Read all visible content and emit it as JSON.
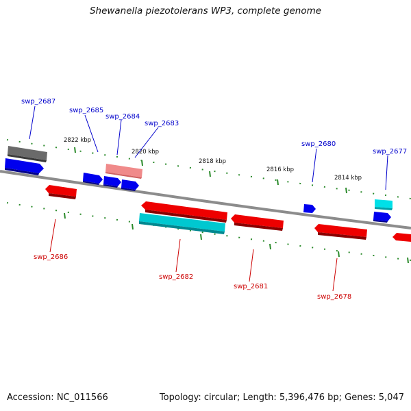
{
  "header": {
    "title": "Shewanella piezotolerans WP3, complete genome"
  },
  "footer": {
    "accession": "Accession: NC_011566",
    "summary": "Topology: circular; Length: 5,396,476 bp; Genes: 5,047"
  },
  "scale": {
    "tick_labels": [
      "2822 kbp",
      "2820 kbp",
      "2818 kbp",
      "2816 kbp",
      "2814 kbp"
    ]
  },
  "genes": {
    "forward": [
      {
        "label": "swp_2687",
        "color": "#0000ee"
      },
      {
        "label": "swp_2685",
        "color": "#0000ee"
      },
      {
        "label": "swp_2684",
        "color": "#0000ee"
      },
      {
        "label": "swp_2683",
        "color": "#0000ee"
      },
      {
        "label": "swp_2680",
        "color": "#0000ee"
      },
      {
        "label": "swp_2677",
        "color": "#0000ee"
      }
    ],
    "reverse": [
      {
        "label": "swp_2686",
        "color": "#ee0000"
      },
      {
        "label": "swp_2682",
        "color": "#ee0000"
      },
      {
        "label": "swp_2681",
        "color": "#ee0000"
      },
      {
        "label": "swp_2678",
        "color": "#ee0000"
      }
    ]
  },
  "colors": {
    "forward_cds": "#0000ee",
    "reverse_cds": "#ee0000",
    "pseudogene": "#f08080",
    "gray_feature": "#666666",
    "rna": "#00c8d0",
    "tick": "#228b22",
    "backbone": "#888888"
  }
}
